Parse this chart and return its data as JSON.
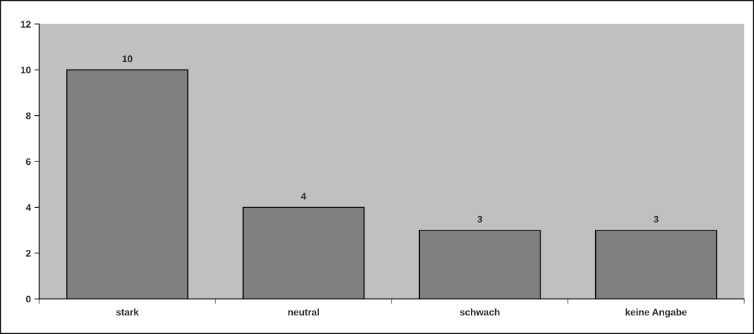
{
  "chart_data": {
    "type": "bar",
    "categories": [
      "stark",
      "neutral",
      "schwach",
      "keine Angabe"
    ],
    "values": [
      10,
      4,
      3,
      3
    ],
    "color": "#808080",
    "ylim": [
      0,
      12
    ],
    "yticks": [
      0,
      2,
      4,
      6,
      8,
      10,
      12
    ],
    "data_labels": true,
    "grid": false
  }
}
